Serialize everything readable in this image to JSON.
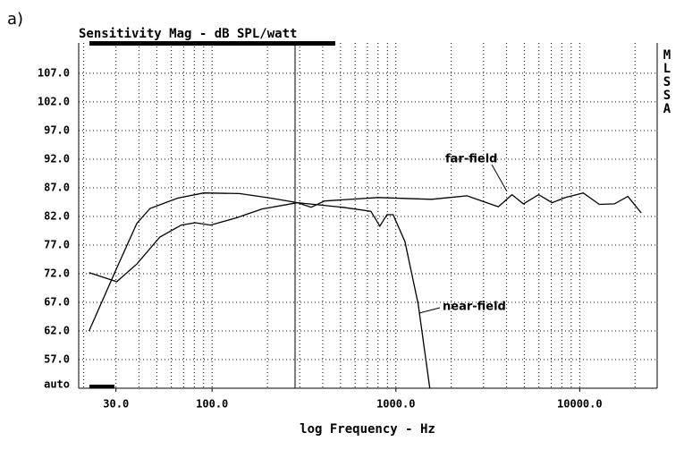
{
  "panel_label": "a)",
  "chart_data": {
    "type": "line",
    "title": "Sensitivity Mag - dB SPL/watt",
    "xlabel": "log Frequency - Hz",
    "side_label": "MLSSA",
    "xscale": "log",
    "grid": true,
    "xlim": [
      18.8,
      26400
    ],
    "xticks": [
      {
        "value": 30,
        "label": "30.0"
      },
      {
        "value": 100,
        "label": "100.0"
      },
      {
        "value": 1000,
        "label": "1000.0"
      },
      {
        "value": 10000,
        "label": "10000.0"
      }
    ],
    "ylim": [
      52,
      112.3
    ],
    "yticks": [
      {
        "value": 52.6,
        "label": "auto"
      },
      {
        "value": 57,
        "label": "57.0"
      },
      {
        "value": 62,
        "label": "62.0"
      },
      {
        "value": 67,
        "label": "67.0"
      },
      {
        "value": 72,
        "label": "72.0"
      },
      {
        "value": 77,
        "label": "77.0"
      },
      {
        "value": 82,
        "label": "82.0"
      },
      {
        "value": 87,
        "label": "87.0"
      },
      {
        "value": 92,
        "label": "92.0"
      },
      {
        "value": 97,
        "label": "97.0"
      },
      {
        "value": 102,
        "label": "102.0"
      },
      {
        "value": 107,
        "label": "107.0"
      }
    ],
    "series": [
      {
        "name": "far-field",
        "color": "#000000",
        "x": [
          21.4,
          30.3,
          39,
          52,
          68,
          81,
          98,
          134,
          187,
          292,
          346,
          409,
          800,
          1563,
          2440,
          3060,
          3610,
          4280,
          4940,
          5980,
          7080,
          8360,
          10450,
          12790,
          15460,
          18280,
          21630
        ],
        "values": [
          72.2,
          70.6,
          73.7,
          78.4,
          80.5,
          80.9,
          80.5,
          81.7,
          83.3,
          84.4,
          83.6,
          84.7,
          85.3,
          85.0,
          85.6,
          84.5,
          83.7,
          85.8,
          84.2,
          85.8,
          84.4,
          85.3,
          86.1,
          84.1,
          84.2,
          85.5,
          82.6
        ]
      },
      {
        "name": "near-field",
        "color": "#000000",
        "x": [
          21.4,
          30.3,
          39,
          46,
          65,
          90,
          141,
          209,
          292,
          512,
          731,
          818,
          894,
          966,
          1120,
          1322,
          1529
        ],
        "values": [
          62,
          73,
          80.8,
          83.4,
          85.2,
          86.1,
          86.0,
          85.2,
          84.4,
          83.6,
          82.9,
          80.3,
          82.3,
          82.3,
          77.6,
          66.7,
          52
        ]
      }
    ]
  }
}
